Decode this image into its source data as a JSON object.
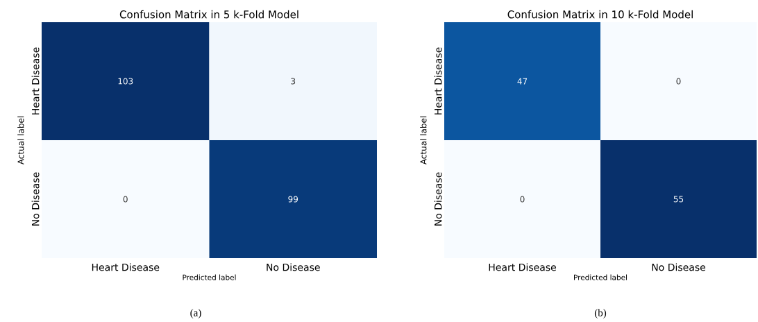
{
  "chart_data": [
    {
      "type": "heatmap",
      "title": "Confusion Matrix in 5 k-Fold Model",
      "xlabel": "Predicted label",
      "ylabel": "Actual label",
      "categories": [
        "Heart Disease",
        "No Disease"
      ],
      "y_categories": [
        "Heart Disease",
        "No Disease"
      ],
      "cells": [
        [
          103,
          3
        ],
        [
          0,
          99
        ]
      ],
      "data_labels": true,
      "annotations": [
        "(a)"
      ]
    },
    {
      "type": "heatmap",
      "title": "Confusion Matrix in 10 k-Fold Model",
      "xlabel": "Predicted label",
      "ylabel": "Actual label",
      "categories": [
        "Heart Disease",
        "No Disease"
      ],
      "y_categories": [
        "Heart Disease",
        "No Disease"
      ],
      "cells": [
        [
          47,
          0
        ],
        [
          0,
          55
        ]
      ],
      "data_labels": true,
      "annotations": [
        "(b)"
      ]
    }
  ]
}
